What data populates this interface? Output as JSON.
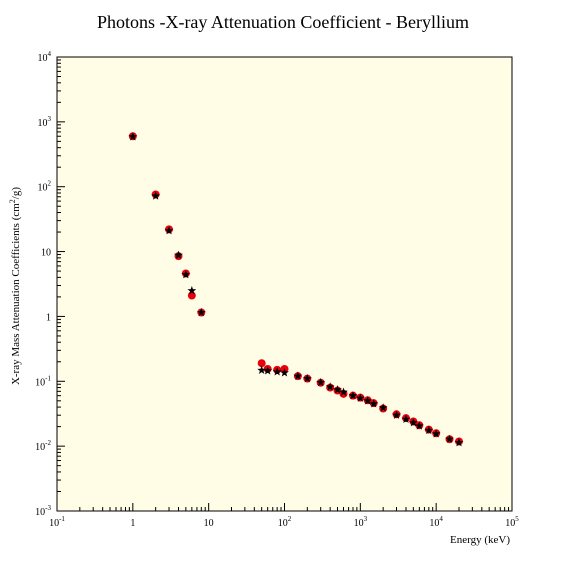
{
  "chart_data": {
    "type": "scatter",
    "title": "Photons -X-ray Attenuation Coefficient - Beryllium",
    "xlabel": "Energy (keV)",
    "ylabel_main": "X-ray Mass Attenuation Coefficients (cm",
    "ylabel_sup": "2",
    "ylabel_tail": "/g)",
    "xscale": "log",
    "yscale": "log",
    "xlim": [
      0.1,
      100000
    ],
    "ylim": [
      0.001,
      10000
    ],
    "grid": false,
    "background": "#fffde6",
    "x_ticks": [
      {
        "value": 0.1,
        "base": "10",
        "exp": "-1"
      },
      {
        "value": 1,
        "base": "1",
        "exp": ""
      },
      {
        "value": 10,
        "base": "10",
        "exp": ""
      },
      {
        "value": 100,
        "base": "10",
        "exp": "2"
      },
      {
        "value": 1000,
        "base": "10",
        "exp": "3"
      },
      {
        "value": 10000,
        "base": "10",
        "exp": "4"
      },
      {
        "value": 100000,
        "base": "10",
        "exp": "5"
      }
    ],
    "y_ticks": [
      {
        "value": 0.001,
        "base": "10",
        "exp": "-3"
      },
      {
        "value": 0.01,
        "base": "10",
        "exp": "-2"
      },
      {
        "value": 0.1,
        "base": "10",
        "exp": "-1"
      },
      {
        "value": 1,
        "base": "1",
        "exp": ""
      },
      {
        "value": 10,
        "base": "10",
        "exp": ""
      },
      {
        "value": 100,
        "base": "10",
        "exp": "2"
      },
      {
        "value": 1000,
        "base": "10",
        "exp": "3"
      },
      {
        "value": 10000,
        "base": "10",
        "exp": "4"
      }
    ],
    "series": [
      {
        "marker": "circle",
        "color": "#e8000b",
        "x": [
          1,
          2,
          3,
          4,
          5,
          6,
          8,
          50,
          60,
          80,
          100,
          150,
          200,
          300,
          400,
          500,
          600,
          800,
          1000,
          1250,
          1500,
          2000,
          3000,
          4000,
          5000,
          6000,
          8000,
          10000,
          15000,
          20000
        ],
        "y": [
          600,
          76,
          22,
          8.5,
          4.6,
          2.1,
          1.15,
          0.19,
          0.155,
          0.15,
          0.155,
          0.12,
          0.11,
          0.095,
          0.08,
          0.072,
          0.064,
          0.06,
          0.056,
          0.051,
          0.046,
          0.038,
          0.031,
          0.027,
          0.024,
          0.021,
          0.018,
          0.0158,
          0.0128,
          0.0118
        ]
      },
      {
        "marker": "star",
        "color": "#000000",
        "x": [
          1,
          2,
          3,
          4,
          5,
          6,
          8,
          50,
          60,
          80,
          100,
          150,
          200,
          300,
          400,
          500,
          600,
          800,
          1000,
          1250,
          1500,
          2000,
          3000,
          4000,
          5000,
          6000,
          8000,
          10000,
          15000,
          20000
        ],
        "y": [
          590,
          72,
          21,
          8.8,
          4.4,
          2.5,
          1.15,
          0.148,
          0.145,
          0.14,
          0.135,
          0.12,
          0.11,
          0.096,
          0.082,
          0.074,
          0.068,
          0.06,
          0.055,
          0.05,
          0.045,
          0.039,
          0.03,
          0.026,
          0.023,
          0.0205,
          0.0175,
          0.0155,
          0.0128,
          0.0113
        ]
      }
    ]
  }
}
